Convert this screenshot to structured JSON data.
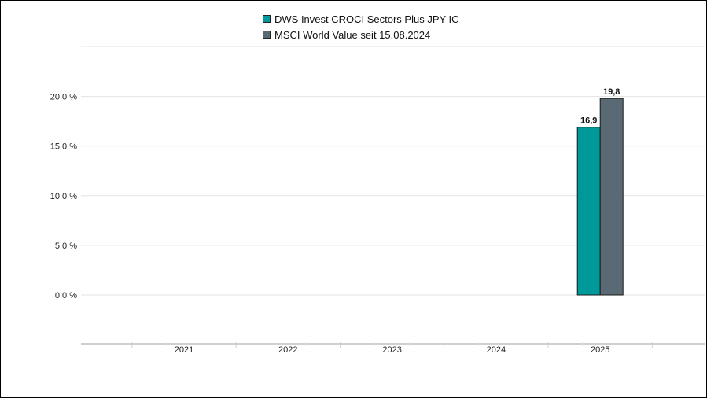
{
  "chart_data": {
    "type": "bar",
    "title": "",
    "xlabel": "",
    "ylabel": "",
    "categories": [
      "2021",
      "2022",
      "2023",
      "2024",
      "2025"
    ],
    "series": [
      {
        "name": "DWS Invest CROCI Sectors Plus JPY IC",
        "color": "#009999",
        "values": [
          null,
          null,
          null,
          null,
          16.9
        ]
      },
      {
        "name": "MSCI World Value seit 15.08.2024",
        "color": "#5a6a74",
        "values": [
          null,
          null,
          null,
          null,
          19.8
        ]
      }
    ],
    "data_labels": [
      null,
      null,
      null,
      null,
      [
        "16,9",
        "19,8"
      ]
    ],
    "yticks": [
      0,
      5,
      10,
      15,
      20
    ],
    "ytick_labels": [
      "0,0 %",
      "5,0 %",
      "10,0 %",
      "15,0 %",
      "20,0 %"
    ],
    "ylim": [
      -5,
      25
    ],
    "grid": true,
    "legend_position": "top-center"
  }
}
